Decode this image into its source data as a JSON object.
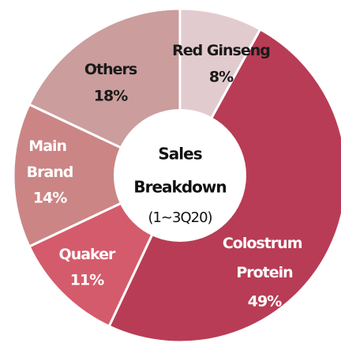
{
  "chart_data": {
    "type": "donut",
    "center_label": [
      "Sales",
      "Breakdown",
      "(1~3Q20)"
    ],
    "categories": [
      "Red Ginseng",
      "Colostrum Protein",
      "Quaker",
      "Main Brand",
      "Others"
    ],
    "values": [
      8,
      49,
      11,
      14,
      18
    ],
    "value_labels": [
      "8%",
      "49%",
      "11%",
      "14%",
      "18%"
    ],
    "colors": [
      "#e2cbcf",
      "#b83c55",
      "#d45b6b",
      "#cc8585",
      "#cb9d9d"
    ]
  }
}
